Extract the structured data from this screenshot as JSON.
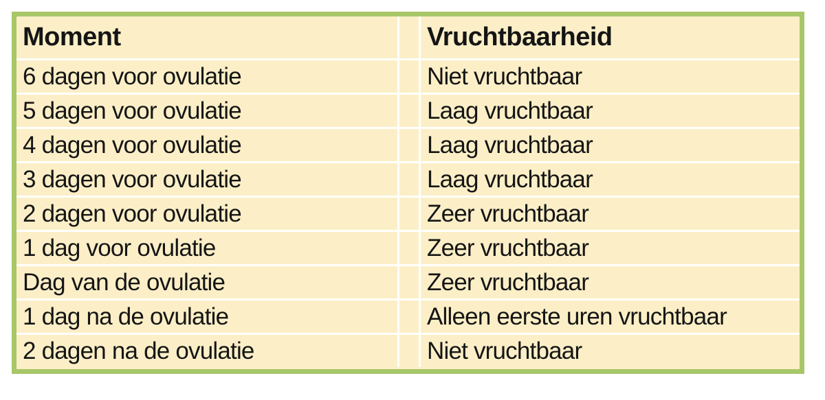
{
  "table": {
    "title_semantic": "vruchtbaarheid-per-cyclusdag",
    "border_color": "#a7c768",
    "cell_background": "#fcefc7",
    "grid_line_color": "#ffffff",
    "text_color": "#151515",
    "headers": [
      "Moment",
      "Vruchtbaarheid"
    ],
    "rows": [
      [
        "6 dagen voor ovulatie",
        "Niet vruchtbaar"
      ],
      [
        "5 dagen voor ovulatie",
        "Laag vruchtbaar"
      ],
      [
        "4 dagen voor ovulatie",
        "Laag vruchtbaar"
      ],
      [
        "3 dagen voor ovulatie",
        "Laag vruchtbaar"
      ],
      [
        "2 dagen voor ovulatie",
        "Zeer vruchtbaar"
      ],
      [
        "1 dag voor ovulatie",
        "Zeer vruchtbaar"
      ],
      [
        "Dag van de ovulatie",
        "Zeer vruchtbaar"
      ],
      [
        "1 dag na de ovulatie",
        "Alleen eerste uren vruchtbaar"
      ],
      [
        "2 dagen na de ovulatie",
        "Niet vruchtbaar"
      ]
    ]
  },
  "chart_data": {
    "type": "table",
    "title": "",
    "columns": [
      "Moment",
      "Vruchtbaarheid"
    ],
    "rows": [
      {
        "moment": "6 dagen voor ovulatie",
        "vruchtbaarheid": "Niet vruchtbaar"
      },
      {
        "moment": "5 dagen voor ovulatie",
        "vruchtbaarheid": "Laag vruchtbaar"
      },
      {
        "moment": "4 dagen voor ovulatie",
        "vruchtbaarheid": "Laag vruchtbaar"
      },
      {
        "moment": "3 dagen voor ovulatie",
        "vruchtbaarheid": "Laag vruchtbaar"
      },
      {
        "moment": "2 dagen voor ovulatie",
        "vruchtbaarheid": "Zeer vruchtbaar"
      },
      {
        "moment": "1 dag voor ovulatie",
        "vruchtbaarheid": "Zeer vruchtbaar"
      },
      {
        "moment": "Dag van de ovulatie",
        "vruchtbaarheid": "Zeer vruchtbaar"
      },
      {
        "moment": "1 dag na de ovulatie",
        "vruchtbaarheid": "Alleen eerste uren vruchtbaar"
      },
      {
        "moment": "2 dagen na de ovulatie",
        "vruchtbaarheid": "Niet vruchtbaar"
      }
    ]
  }
}
